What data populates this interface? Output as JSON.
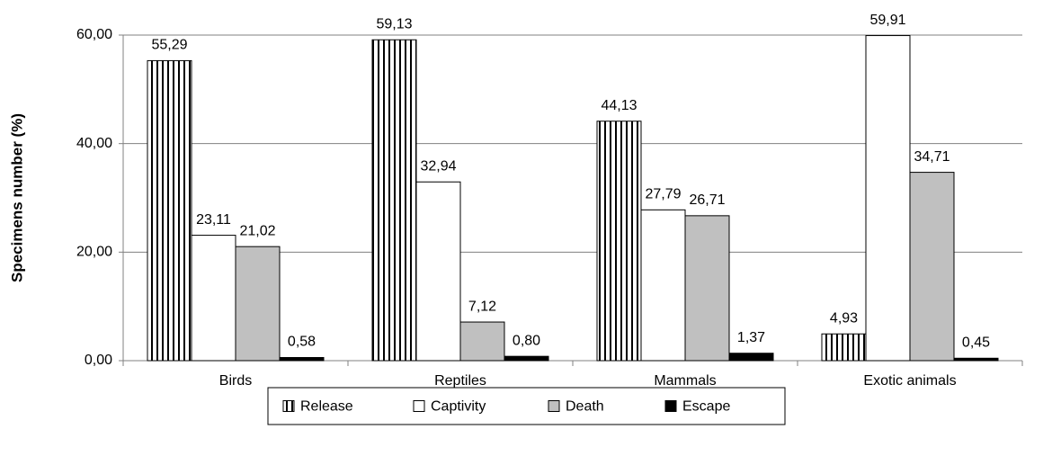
{
  "chart_data": {
    "type": "bar",
    "y_label": "Specimens number (%)",
    "categories": [
      "Birds",
      "Reptiles",
      "Mammals",
      "Exotic animals"
    ],
    "series": [
      {
        "name": "Release",
        "color": "#ffffff",
        "pattern": "vertical-lines",
        "values": [
          55.29,
          59.13,
          44.13,
          4.93
        ],
        "value_labels": [
          "55,29",
          "59,13",
          "44,13",
          "4,93"
        ]
      },
      {
        "name": "Captivity",
        "color": "#ffffff",
        "values": [
          23.11,
          32.94,
          27.79,
          59.91
        ],
        "value_labels": [
          "23,11",
          "32,94",
          "27,79",
          "59,91"
        ]
      },
      {
        "name": "Death",
        "color": "#c0c0c0",
        "values": [
          21.02,
          7.12,
          26.71,
          34.71
        ],
        "value_labels": [
          "21,02",
          "7,12",
          "26,71",
          "34,71"
        ]
      },
      {
        "name": "Escape",
        "color": "#000000",
        "values": [
          0.58,
          0.8,
          1.37,
          0.45
        ],
        "value_labels": [
          "0,58",
          "0,80",
          "1,37",
          "0,45"
        ]
      }
    ],
    "ylim": [
      0,
      60
    ],
    "yticks": [
      {
        "value": 0,
        "label": "0,00"
      },
      {
        "value": 20,
        "label": "20,00"
      },
      {
        "value": 40,
        "label": "40,00"
      },
      {
        "value": 60,
        "label": "60,00"
      }
    ],
    "grid": true,
    "legend": "bottom"
  }
}
